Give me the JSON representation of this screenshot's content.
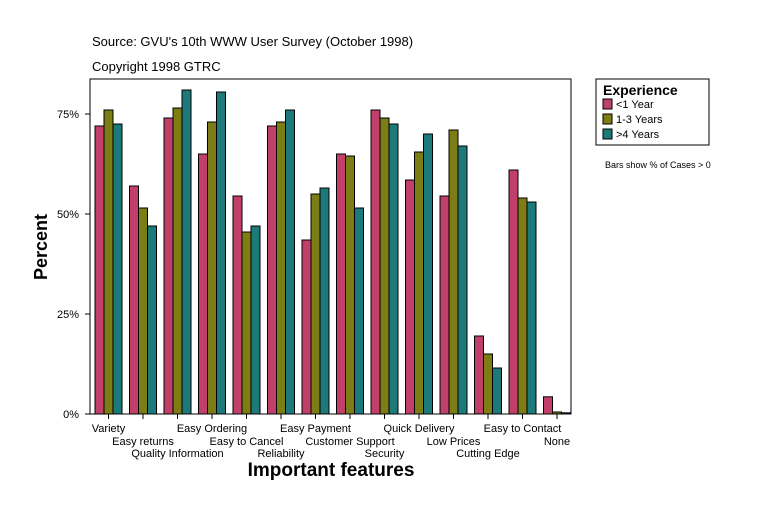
{
  "header": {
    "source": "Source: GVU's 10th WWW User Survey (October 1998)",
    "copyright": "Copyright 1998 GTRC"
  },
  "note": "Bars show % of Cases > 0",
  "colors": {
    "lt1": "#c0406a",
    "y13": "#7d7d16",
    "gt4": "#1e7a7a",
    "axis": "#000000",
    "plot_border": "#000000"
  },
  "chart_data": {
    "type": "bar",
    "title": "",
    "xlabel": "Important features",
    "ylabel": "Percent",
    "ylim": [
      0,
      85
    ],
    "yticks": [
      0,
      25,
      50,
      75
    ],
    "ytick_labels": [
      "0%",
      "25%",
      "50%",
      "75%"
    ],
    "grid": false,
    "legend": {
      "title": "Experience",
      "placement": "right"
    },
    "categories": [
      "Variety",
      "Easy returns",
      "Quality Information",
      "Easy Ordering",
      "Easy to Cancel",
      "Reliability",
      "Easy Payment",
      "Customer Support",
      "Security",
      "Quick Delivery",
      "Low Prices",
      "Cutting Edge",
      "Easy to Contact",
      "None"
    ],
    "series": [
      {
        "name": "<1 Year",
        "color_key": "lt1",
        "values": [
          72,
          57,
          74,
          65,
          54.5,
          72,
          43.5,
          65,
          76,
          58.5,
          54.5,
          19.5,
          61,
          4.3
        ]
      },
      {
        "name": "1-3 Years",
        "color_key": "y13",
        "values": [
          76,
          51.5,
          76.5,
          73,
          45.5,
          73,
          55,
          64.5,
          74,
          65.5,
          71,
          15,
          54,
          0.5
        ]
      },
      {
        "name": ">4 Years",
        "color_key": "gt4",
        "values": [
          72.5,
          47,
          81,
          80.5,
          47,
          76,
          56.5,
          51.5,
          72.5,
          70,
          67,
          11.5,
          53,
          0.3
        ]
      }
    ]
  }
}
